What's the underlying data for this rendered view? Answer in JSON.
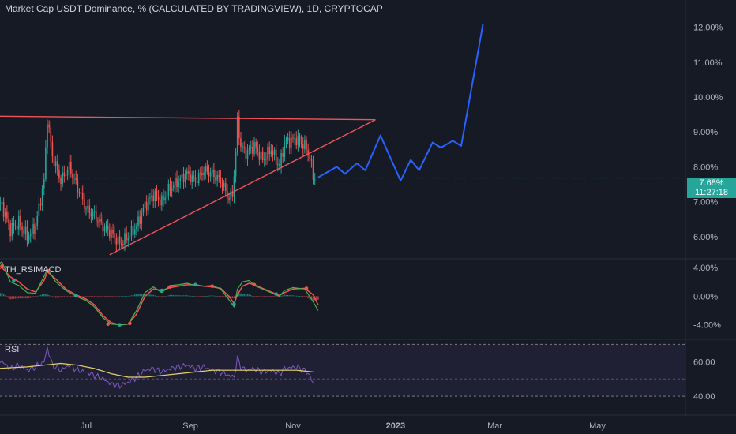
{
  "title": "Market Cap USDT Dominance, % (CALCULATED BY TRADINGVIEW), 1D, CRYPTOCAP",
  "current": {
    "value": "7.68%",
    "countdown": "11:27:18"
  },
  "colors": {
    "bg": "#161a25",
    "up": "#26a69a",
    "down": "#ef5350",
    "trendline": "#f0535a",
    "projection": "#2962ff",
    "rsi": "#7e57c2",
    "rsi_ma": "#e6d36a",
    "macd_fast": "#4caf50",
    "macd_slow": "#ef5350"
  },
  "chart_data": [
    {
      "type": "candlestick",
      "ylabel": "",
      "ylim": [
        5.5,
        12.6
      ],
      "y_ticks": [
        "12.00%",
        "11.00%",
        "10.00%",
        "9.00%",
        "8.00%",
        "7.00%",
        "6.00%"
      ],
      "y_tick_values": [
        12,
        11,
        10,
        9,
        8,
        7,
        6
      ],
      "x_ticks": [
        "Jul",
        "Sep",
        "Nov",
        "2023",
        "Mar",
        "May"
      ],
      "x_tick_days": [
        0,
        62,
        123,
        184,
        243,
        304
      ],
      "x_day_origin": "Jul 1",
      "ohlc_knots": [
        [
          -50,
          6.9
        ],
        [
          -45,
          6.2
        ],
        [
          -40,
          6.4
        ],
        [
          -35,
          6.0
        ],
        [
          -30,
          6.3
        ],
        [
          -25,
          7.6
        ],
        [
          -23,
          9.4
        ],
        [
          -20,
          8.3
        ],
        [
          -15,
          7.6
        ],
        [
          -10,
          8.0
        ],
        [
          -5,
          7.4
        ],
        [
          0,
          6.8
        ],
        [
          5,
          6.6
        ],
        [
          10,
          6.3
        ],
        [
          15,
          6.1
        ],
        [
          20,
          5.8
        ],
        [
          25,
          6.0
        ],
        [
          30,
          6.3
        ],
        [
          35,
          6.9
        ],
        [
          40,
          7.2
        ],
        [
          45,
          7.0
        ],
        [
          50,
          7.4
        ],
        [
          55,
          7.6
        ],
        [
          60,
          7.8
        ],
        [
          65,
          7.6
        ],
        [
          70,
          7.9
        ],
        [
          75,
          7.8
        ],
        [
          80,
          7.6
        ],
        [
          85,
          7.1
        ],
        [
          87,
          7.2
        ],
        [
          89,
          8.4
        ],
        [
          90,
          9.3
        ],
        [
          92,
          8.6
        ],
        [
          95,
          8.4
        ],
        [
          100,
          8.6
        ],
        [
          105,
          8.2
        ],
        [
          110,
          8.5
        ],
        [
          115,
          8.0
        ],
        [
          118,
          8.7
        ],
        [
          125,
          8.8
        ],
        [
          130,
          8.6
        ],
        [
          133,
          8.3
        ],
        [
          135,
          7.7
        ]
      ],
      "trendlines": [
        {
          "name": "resistance",
          "points": [
            [
              -54,
              9.45
            ],
            [
              172,
              9.35
            ]
          ]
        },
        {
          "name": "support",
          "points": [
            [
              14,
              5.48
            ],
            [
              172,
              9.35
            ]
          ]
        }
      ],
      "projection": [
        [
          138,
          7.7
        ],
        [
          149,
          8.0
        ],
        [
          154,
          7.8
        ],
        [
          161,
          8.1
        ],
        [
          166,
          7.9
        ],
        [
          175,
          8.9
        ],
        [
          187,
          7.6
        ],
        [
          193,
          8.2
        ],
        [
          198,
          7.9
        ],
        [
          206,
          8.7
        ],
        [
          211,
          8.55
        ],
        [
          218,
          8.75
        ],
        [
          223,
          8.6
        ],
        [
          236,
          12.1
        ]
      ]
    },
    {
      "type": "line",
      "name": "TH_RSIMACD",
      "ylim": [
        -5.8,
        5.0
      ],
      "y_ticks": [
        "4.00%",
        "0.00%",
        "-4.00%"
      ],
      "y_tick_values": [
        4,
        0,
        -4
      ],
      "series": [
        {
          "name": "fast",
          "points": [
            [
              -54,
              4.2
            ],
            [
              -50,
              4.8
            ],
            [
              -45,
              2.0
            ],
            [
              -40,
              1.5
            ],
            [
              -35,
              0.5
            ],
            [
              -30,
              0.4
            ],
            [
              -25,
              2.8
            ],
            [
              -23,
              3.8
            ],
            [
              -18,
              2.0
            ],
            [
              -12,
              0.8
            ],
            [
              -6,
              0.0
            ],
            [
              0,
              -0.6
            ],
            [
              5,
              -1.5
            ],
            [
              10,
              -3.0
            ],
            [
              15,
              -3.9
            ],
            [
              20,
              -4.0
            ],
            [
              25,
              -3.9
            ],
            [
              30,
              -2.0
            ],
            [
              35,
              0.5
            ],
            [
              40,
              1.3
            ],
            [
              45,
              0.5
            ],
            [
              50,
              1.5
            ],
            [
              55,
              1.6
            ],
            [
              60,
              1.8
            ],
            [
              65,
              1.5
            ],
            [
              70,
              1.4
            ],
            [
              75,
              1.5
            ],
            [
              80,
              1.0
            ],
            [
              85,
              -0.5
            ],
            [
              88,
              -1.5
            ],
            [
              90,
              1.0
            ],
            [
              93,
              2.0
            ],
            [
              97,
              2.2
            ],
            [
              100,
              1.5
            ],
            [
              105,
              1.0
            ],
            [
              110,
              0.5
            ],
            [
              115,
              0.0
            ],
            [
              118,
              0.8
            ],
            [
              123,
              1.2
            ],
            [
              130,
              1.0
            ],
            [
              135,
              -0.8
            ],
            [
              138,
              -2.0
            ]
          ]
        },
        {
          "name": "slow",
          "points": [
            [
              -54,
              3.6
            ],
            [
              -50,
              4.0
            ],
            [
              -45,
              2.7
            ],
            [
              -40,
              2.0
            ],
            [
              -35,
              1.0
            ],
            [
              -30,
              0.6
            ],
            [
              -25,
              2.2
            ],
            [
              -23,
              3.4
            ],
            [
              -18,
              2.4
            ],
            [
              -12,
              1.0
            ],
            [
              -6,
              0.2
            ],
            [
              0,
              -0.4
            ],
            [
              5,
              -1.2
            ],
            [
              10,
              -2.7
            ],
            [
              15,
              -3.7
            ],
            [
              20,
              -4.0
            ],
            [
              25,
              -3.9
            ],
            [
              30,
              -2.5
            ],
            [
              35,
              0.0
            ],
            [
              40,
              1.0
            ],
            [
              45,
              0.8
            ],
            [
              50,
              1.2
            ],
            [
              55,
              1.4
            ],
            [
              60,
              1.6
            ],
            [
              65,
              1.6
            ],
            [
              70,
              1.4
            ],
            [
              75,
              1.3
            ],
            [
              80,
              1.1
            ],
            [
              85,
              0.0
            ],
            [
              88,
              -1.0
            ],
            [
              90,
              0.2
            ],
            [
              93,
              1.4
            ],
            [
              97,
              1.8
            ],
            [
              100,
              1.6
            ],
            [
              105,
              1.1
            ],
            [
              110,
              0.6
            ],
            [
              115,
              0.1
            ],
            [
              118,
              0.5
            ],
            [
              123,
              1.0
            ],
            [
              130,
              1.1
            ],
            [
              135,
              0.2
            ],
            [
              138,
              -1.2
            ]
          ]
        }
      ],
      "crosses": [
        [
          -50,
          4.2
        ],
        [
          -43,
          2.2
        ],
        [
          -23,
          3.6
        ],
        [
          -6,
          0.1
        ],
        [
          13,
          -3.9
        ],
        [
          20,
          -4.0
        ],
        [
          26,
          -3.8
        ],
        [
          45,
          0.8
        ],
        [
          50,
          1.3
        ],
        [
          65,
          1.6
        ],
        [
          75,
          1.4
        ],
        [
          88,
          -1.1
        ],
        [
          100,
          1.6
        ],
        [
          113,
          0.3
        ],
        [
          131,
          1.1
        ]
      ]
    },
    {
      "type": "line",
      "name": "RSI",
      "ylim": [
        30,
        72
      ],
      "y_ticks": [
        "60.00",
        "40.00"
      ],
      "y_tick_values": [
        60,
        40
      ],
      "band": [
        40,
        70
      ],
      "series": [
        {
          "name": "rsi",
          "points": [
            [
              -54,
              62
            ],
            [
              -50,
              60
            ],
            [
              -45,
              56
            ],
            [
              -40,
              58
            ],
            [
              -35,
              55
            ],
            [
              -30,
              57
            ],
            [
              -25,
              60
            ],
            [
              -23,
              68
            ],
            [
              -20,
              58
            ],
            [
              -15,
              55
            ],
            [
              -10,
              58
            ],
            [
              -5,
              55
            ],
            [
              0,
              54
            ],
            [
              5,
              52
            ],
            [
              10,
              50
            ],
            [
              15,
              47
            ],
            [
              20,
              46
            ],
            [
              25,
              48
            ],
            [
              30,
              51
            ],
            [
              35,
              55
            ],
            [
              40,
              56
            ],
            [
              45,
              54
            ],
            [
              50,
              56
            ],
            [
              55,
              57
            ],
            [
              60,
              58
            ],
            [
              65,
              56
            ],
            [
              70,
              57
            ],
            [
              75,
              55
            ],
            [
              80,
              54
            ],
            [
              85,
              52
            ],
            [
              88,
              51
            ],
            [
              90,
              62
            ],
            [
              92,
              57
            ],
            [
              95,
              55
            ],
            [
              100,
              56
            ],
            [
              105,
              54
            ],
            [
              110,
              55
            ],
            [
              115,
              53
            ],
            [
              118,
              56
            ],
            [
              125,
              57
            ],
            [
              130,
              55
            ],
            [
              133,
              52
            ],
            [
              135,
              47
            ]
          ]
        },
        {
          "name": "ma",
          "points": [
            [
              -54,
              56
            ],
            [
              -35,
              57
            ],
            [
              -25,
              58
            ],
            [
              -15,
              59
            ],
            [
              -5,
              58
            ],
            [
              5,
              56
            ],
            [
              15,
              53
            ],
            [
              25,
              51
            ],
            [
              35,
              51
            ],
            [
              45,
              52
            ],
            [
              55,
              53
            ],
            [
              65,
              54
            ],
            [
              75,
              55
            ],
            [
              85,
              55
            ],
            [
              95,
              55
            ],
            [
              105,
              55
            ],
            [
              115,
              55
            ],
            [
              125,
              55
            ],
            [
              135,
              54
            ]
          ]
        }
      ]
    }
  ]
}
